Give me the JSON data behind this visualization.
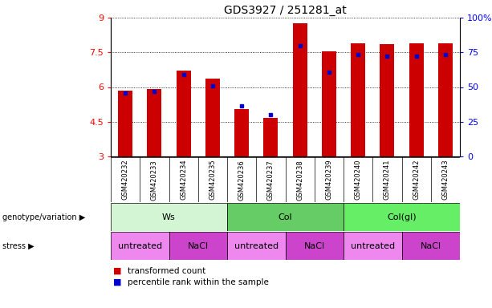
{
  "title": "GDS3927 / 251281_at",
  "samples": [
    "GSM420232",
    "GSM420233",
    "GSM420234",
    "GSM420235",
    "GSM420236",
    "GSM420237",
    "GSM420238",
    "GSM420239",
    "GSM420240",
    "GSM420241",
    "GSM420242",
    "GSM420243"
  ],
  "red_values": [
    5.85,
    5.9,
    6.7,
    6.35,
    5.05,
    4.65,
    8.75,
    7.55,
    7.9,
    7.85,
    7.9,
    7.9
  ],
  "blue_values": [
    5.75,
    5.8,
    6.55,
    6.05,
    5.2,
    4.8,
    7.8,
    6.65,
    7.4,
    7.35,
    7.35,
    7.4
  ],
  "ylim_left": [
    3,
    9
  ],
  "yticks_left": [
    3,
    4.5,
    6,
    7.5,
    9
  ],
  "ytick_labels_left": [
    "3",
    "4.5",
    "6",
    "7.5",
    "9"
  ],
  "ylim_right": [
    0,
    100
  ],
  "yticks_right": [
    0,
    25,
    50,
    75,
    100
  ],
  "ytick_labels_right": [
    "0",
    "25",
    "50",
    "75",
    "100%"
  ],
  "bar_color": "#cc0000",
  "dot_color": "#0000cc",
  "groups": [
    {
      "label": "Ws",
      "start": 0,
      "end": 4,
      "color": "#d4f5d4"
    },
    {
      "label": "Col",
      "start": 4,
      "end": 8,
      "color": "#66cc66"
    },
    {
      "label": "Col(gl)",
      "start": 8,
      "end": 12,
      "color": "#66ee66"
    }
  ],
  "stress_groups": [
    {
      "label": "untreated",
      "start": 0,
      "end": 2,
      "color": "#ee88ee"
    },
    {
      "label": "NaCl",
      "start": 2,
      "end": 4,
      "color": "#cc44cc"
    },
    {
      "label": "untreated",
      "start": 4,
      "end": 6,
      "color": "#ee88ee"
    },
    {
      "label": "NaCl",
      "start": 6,
      "end": 8,
      "color": "#cc44cc"
    },
    {
      "label": "untreated",
      "start": 8,
      "end": 10,
      "color": "#ee88ee"
    },
    {
      "label": "NaCl",
      "start": 10,
      "end": 12,
      "color": "#cc44cc"
    }
  ],
  "legend_red_label": "transformed count",
  "legend_blue_label": "percentile rank within the sample",
  "bar_width": 0.5,
  "title_fontsize": 10,
  "tick_fontsize": 8,
  "sample_fontsize": 6
}
